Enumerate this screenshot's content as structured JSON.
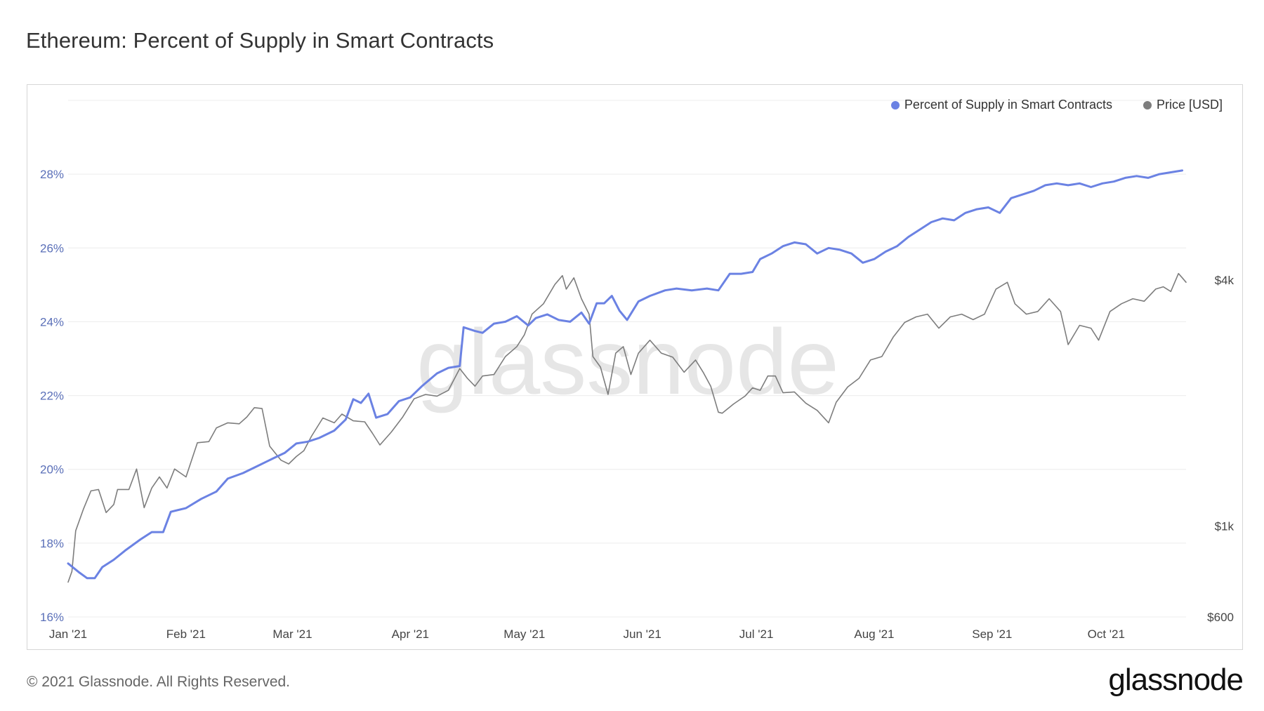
{
  "title": "Ethereum: Percent of Supply in Smart Contracts",
  "footer": "© 2021 Glassnode. All Rights Reserved.",
  "brand": "glassnode",
  "watermark": "glassnode",
  "colors": {
    "supply": "#6b82e3",
    "price": "#7d7d7d",
    "left_axis_text": "#5a6fb8",
    "right_axis_text": "#444444",
    "grid": "#ececec"
  },
  "chart_data": {
    "type": "line",
    "title": "Ethereum: Percent of Supply in Smart Contracts",
    "x_ticks": [
      "Jan '21",
      "Feb '21",
      "Mar '21",
      "Apr '21",
      "May '21",
      "Jun '21",
      "Jul '21",
      "Aug '21",
      "Sep '21",
      "Oct '21"
    ],
    "x_range": [
      "2021-01-01",
      "2021-10-22"
    ],
    "y_left": {
      "ticks": [
        "16%",
        "18%",
        "20%",
        "22%",
        "24%",
        "26%",
        "28%"
      ],
      "ylim": [
        16,
        30
      ],
      "unit": "%"
    },
    "y_right": {
      "ticks": [
        "$600",
        "$1k",
        "$4k"
      ],
      "scale": "log",
      "ylim": [
        600,
        11000
      ],
      "unit": "USD"
    },
    "grid": true,
    "legend_position": "top-right",
    "series": [
      {
        "name": "Percent of Supply in Smart Contracts",
        "axis": "left",
        "color": "#6b82e3",
        "points": [
          [
            "2021-01-01",
            17.45
          ],
          [
            "2021-01-04",
            17.2
          ],
          [
            "2021-01-06",
            17.05
          ],
          [
            "2021-01-08",
            17.05
          ],
          [
            "2021-01-10",
            17.35
          ],
          [
            "2021-01-13",
            17.55
          ],
          [
            "2021-01-16",
            17.8
          ],
          [
            "2021-01-20",
            18.1
          ],
          [
            "2021-01-23",
            18.3
          ],
          [
            "2021-01-26",
            18.3
          ],
          [
            "2021-01-28",
            18.85
          ],
          [
            "2021-02-01",
            18.95
          ],
          [
            "2021-02-05",
            19.2
          ],
          [
            "2021-02-09",
            19.4
          ],
          [
            "2021-02-12",
            19.75
          ],
          [
            "2021-02-16",
            19.9
          ],
          [
            "2021-02-20",
            20.1
          ],
          [
            "2021-02-24",
            20.3
          ],
          [
            "2021-02-27",
            20.45
          ],
          [
            "2021-03-02",
            20.7
          ],
          [
            "2021-03-05",
            20.75
          ],
          [
            "2021-03-08",
            20.85
          ],
          [
            "2021-03-12",
            21.05
          ],
          [
            "2021-03-15",
            21.35
          ],
          [
            "2021-03-17",
            21.9
          ],
          [
            "2021-03-19",
            21.8
          ],
          [
            "2021-03-21",
            22.05
          ],
          [
            "2021-03-23",
            21.4
          ],
          [
            "2021-03-26",
            21.5
          ],
          [
            "2021-03-29",
            21.85
          ],
          [
            "2021-04-01",
            21.95
          ],
          [
            "2021-04-04",
            22.25
          ],
          [
            "2021-04-08",
            22.6
          ],
          [
            "2021-04-11",
            22.75
          ],
          [
            "2021-04-14",
            22.8
          ],
          [
            "2021-04-15",
            23.85
          ],
          [
            "2021-04-18",
            23.75
          ],
          [
            "2021-04-20",
            23.7
          ],
          [
            "2021-04-23",
            23.95
          ],
          [
            "2021-04-26",
            24.0
          ],
          [
            "2021-04-29",
            24.15
          ],
          [
            "2021-05-02",
            23.9
          ],
          [
            "2021-05-04",
            24.1
          ],
          [
            "2021-05-07",
            24.2
          ],
          [
            "2021-05-10",
            24.05
          ],
          [
            "2021-05-13",
            24.0
          ],
          [
            "2021-05-16",
            24.25
          ],
          [
            "2021-05-18",
            23.95
          ],
          [
            "2021-05-20",
            24.5
          ],
          [
            "2021-05-22",
            24.5
          ],
          [
            "2021-05-24",
            24.7
          ],
          [
            "2021-05-26",
            24.3
          ],
          [
            "2021-05-28",
            24.05
          ],
          [
            "2021-05-31",
            24.55
          ],
          [
            "2021-06-03",
            24.7
          ],
          [
            "2021-06-07",
            24.85
          ],
          [
            "2021-06-10",
            24.9
          ],
          [
            "2021-06-14",
            24.85
          ],
          [
            "2021-06-18",
            24.9
          ],
          [
            "2021-06-21",
            24.85
          ],
          [
            "2021-06-24",
            25.3
          ],
          [
            "2021-06-27",
            25.3
          ],
          [
            "2021-06-30",
            25.35
          ],
          [
            "2021-07-02",
            25.7
          ],
          [
            "2021-07-05",
            25.85
          ],
          [
            "2021-07-08",
            26.05
          ],
          [
            "2021-07-11",
            26.15
          ],
          [
            "2021-07-14",
            26.1
          ],
          [
            "2021-07-17",
            25.85
          ],
          [
            "2021-07-20",
            26.0
          ],
          [
            "2021-07-23",
            25.95
          ],
          [
            "2021-07-26",
            25.85
          ],
          [
            "2021-07-29",
            25.6
          ],
          [
            "2021-08-01",
            25.7
          ],
          [
            "2021-08-04",
            25.9
          ],
          [
            "2021-08-07",
            26.05
          ],
          [
            "2021-08-10",
            26.3
          ],
          [
            "2021-08-13",
            26.5
          ],
          [
            "2021-08-16",
            26.7
          ],
          [
            "2021-08-19",
            26.8
          ],
          [
            "2021-08-22",
            26.75
          ],
          [
            "2021-08-25",
            26.95
          ],
          [
            "2021-08-28",
            27.05
          ],
          [
            "2021-08-31",
            27.1
          ],
          [
            "2021-09-03",
            26.95
          ],
          [
            "2021-09-06",
            27.35
          ],
          [
            "2021-09-09",
            27.45
          ],
          [
            "2021-09-12",
            27.55
          ],
          [
            "2021-09-15",
            27.7
          ],
          [
            "2021-09-18",
            27.75
          ],
          [
            "2021-09-21",
            27.7
          ],
          [
            "2021-09-24",
            27.75
          ],
          [
            "2021-09-27",
            27.65
          ],
          [
            "2021-09-30",
            27.75
          ],
          [
            "2021-10-03",
            27.8
          ],
          [
            "2021-10-06",
            27.9
          ],
          [
            "2021-10-09",
            27.95
          ],
          [
            "2021-10-12",
            27.9
          ],
          [
            "2021-10-15",
            28.0
          ],
          [
            "2021-10-18",
            28.05
          ],
          [
            "2021-10-21",
            28.1
          ]
        ]
      },
      {
        "name": "Price [USD]",
        "axis": "right",
        "color": "#7d7d7d",
        "points": [
          [
            "2021-01-01",
            730
          ],
          [
            "2021-01-02",
            775
          ],
          [
            "2021-01-03",
            975
          ],
          [
            "2021-01-05",
            1100
          ],
          [
            "2021-01-07",
            1220
          ],
          [
            "2021-01-09",
            1230
          ],
          [
            "2021-01-11",
            1080
          ],
          [
            "2021-01-13",
            1130
          ],
          [
            "2021-01-14",
            1230
          ],
          [
            "2021-01-17",
            1230
          ],
          [
            "2021-01-19",
            1380
          ],
          [
            "2021-01-21",
            1110
          ],
          [
            "2021-01-23",
            1240
          ],
          [
            "2021-01-25",
            1320
          ],
          [
            "2021-01-27",
            1240
          ],
          [
            "2021-01-29",
            1380
          ],
          [
            "2021-02-01",
            1320
          ],
          [
            "2021-02-04",
            1600
          ],
          [
            "2021-02-07",
            1610
          ],
          [
            "2021-02-09",
            1740
          ],
          [
            "2021-02-12",
            1790
          ],
          [
            "2021-02-15",
            1780
          ],
          [
            "2021-02-17",
            1850
          ],
          [
            "2021-02-19",
            1950
          ],
          [
            "2021-02-21",
            1940
          ],
          [
            "2021-02-23",
            1570
          ],
          [
            "2021-02-26",
            1450
          ],
          [
            "2021-02-28",
            1420
          ],
          [
            "2021-03-02",
            1480
          ],
          [
            "2021-03-04",
            1530
          ],
          [
            "2021-03-06",
            1660
          ],
          [
            "2021-03-09",
            1840
          ],
          [
            "2021-03-12",
            1790
          ],
          [
            "2021-03-14",
            1880
          ],
          [
            "2021-03-17",
            1810
          ],
          [
            "2021-03-20",
            1800
          ],
          [
            "2021-03-22",
            1690
          ],
          [
            "2021-03-24",
            1580
          ],
          [
            "2021-03-27",
            1700
          ],
          [
            "2021-03-30",
            1850
          ],
          [
            "2021-04-02",
            2050
          ],
          [
            "2021-04-05",
            2100
          ],
          [
            "2021-04-08",
            2080
          ],
          [
            "2021-04-11",
            2150
          ],
          [
            "2021-04-14",
            2430
          ],
          [
            "2021-04-16",
            2300
          ],
          [
            "2021-04-18",
            2200
          ],
          [
            "2021-04-20",
            2330
          ],
          [
            "2021-04-23",
            2350
          ],
          [
            "2021-04-26",
            2600
          ],
          [
            "2021-04-29",
            2750
          ],
          [
            "2021-05-01",
            2940
          ],
          [
            "2021-05-03",
            3300
          ],
          [
            "2021-05-06",
            3500
          ],
          [
            "2021-05-09",
            3900
          ],
          [
            "2021-05-11",
            4100
          ],
          [
            "2021-05-12",
            3800
          ],
          [
            "2021-05-14",
            4050
          ],
          [
            "2021-05-16",
            3600
          ],
          [
            "2021-05-18",
            3300
          ],
          [
            "2021-05-19",
            2600
          ],
          [
            "2021-05-21",
            2450
          ],
          [
            "2021-05-23",
            2100
          ],
          [
            "2021-05-25",
            2650
          ],
          [
            "2021-05-27",
            2750
          ],
          [
            "2021-05-29",
            2350
          ],
          [
            "2021-05-31",
            2650
          ],
          [
            "2021-06-03",
            2850
          ],
          [
            "2021-06-06",
            2650
          ],
          [
            "2021-06-09",
            2590
          ],
          [
            "2021-06-12",
            2380
          ],
          [
            "2021-06-15",
            2550
          ],
          [
            "2021-06-17",
            2380
          ],
          [
            "2021-06-19",
            2200
          ],
          [
            "2021-06-21",
            1900
          ],
          [
            "2021-06-22",
            1890
          ],
          [
            "2021-06-25",
            1990
          ],
          [
            "2021-06-28",
            2080
          ],
          [
            "2021-06-30",
            2180
          ],
          [
            "2021-07-02",
            2150
          ],
          [
            "2021-07-04",
            2330
          ],
          [
            "2021-07-06",
            2330
          ],
          [
            "2021-07-08",
            2120
          ],
          [
            "2021-07-11",
            2130
          ],
          [
            "2021-07-14",
            2000
          ],
          [
            "2021-07-17",
            1920
          ],
          [
            "2021-07-20",
            1790
          ],
          [
            "2021-07-22",
            2010
          ],
          [
            "2021-07-25",
            2190
          ],
          [
            "2021-07-28",
            2300
          ],
          [
            "2021-07-31",
            2550
          ],
          [
            "2021-08-03",
            2600
          ],
          [
            "2021-08-06",
            2900
          ],
          [
            "2021-08-09",
            3150
          ],
          [
            "2021-08-12",
            3250
          ],
          [
            "2021-08-15",
            3300
          ],
          [
            "2021-08-18",
            3050
          ],
          [
            "2021-08-21",
            3250
          ],
          [
            "2021-08-24",
            3300
          ],
          [
            "2021-08-27",
            3200
          ],
          [
            "2021-08-30",
            3300
          ],
          [
            "2021-09-02",
            3800
          ],
          [
            "2021-09-05",
            3950
          ],
          [
            "2021-09-07",
            3500
          ],
          [
            "2021-09-10",
            3300
          ],
          [
            "2021-09-13",
            3350
          ],
          [
            "2021-09-16",
            3600
          ],
          [
            "2021-09-19",
            3350
          ],
          [
            "2021-09-21",
            2780
          ],
          [
            "2021-09-24",
            3100
          ],
          [
            "2021-09-27",
            3050
          ],
          [
            "2021-09-29",
            2850
          ],
          [
            "2021-10-02",
            3350
          ],
          [
            "2021-10-05",
            3500
          ],
          [
            "2021-10-08",
            3600
          ],
          [
            "2021-10-11",
            3550
          ],
          [
            "2021-10-14",
            3800
          ],
          [
            "2021-10-16",
            3850
          ],
          [
            "2021-10-18",
            3750
          ],
          [
            "2021-10-20",
            4150
          ],
          [
            "2021-10-21",
            4050
          ],
          [
            "2021-10-22",
            3950
          ]
        ]
      }
    ]
  }
}
